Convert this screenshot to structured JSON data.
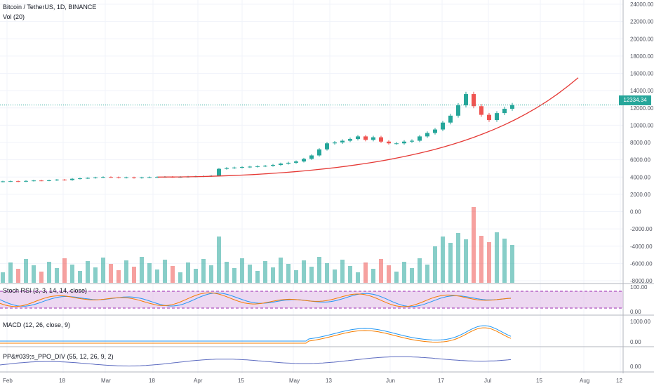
{
  "header": {
    "symbol_line": "Bitcoin / TetherUS, 1D, BINANCE",
    "volume_line": "Vol (20)"
  },
  "indicators": {
    "stoch": "Stoch RSI (3, 3, 14, 14, close)",
    "macd": "MACD (12, 26, close, 9)",
    "ppo": "PP&#039;s_PPO_DIV (55, 12, 26, 9, 2)"
  },
  "price_badge": "12334.34",
  "colors": {
    "up": "#26a69a",
    "down": "#ef5350",
    "trend": "#e53935",
    "stoch_band": "#e1bee7"
  },
  "chart_data": {
    "type": "candlestick",
    "x_ticks": [
      "Feb",
      "18",
      "Mar",
      "18",
      "Apr",
      "15",
      "May",
      "13",
      "Jun",
      "17",
      "Jul",
      "15",
      "Aug",
      "12"
    ],
    "y_ticks": [
      "24000.00",
      "22000.00",
      "20000.00",
      "18000.00",
      "16000.00",
      "14000.00",
      "12000.00",
      "10000.00",
      "8000.00",
      "6000.00",
      "4000.00",
      "2000.00",
      "0.00",
      "-2000.00",
      "-4000.00",
      "-6000.00",
      "-8000.00"
    ],
    "stoch_ticks": [
      "100.00",
      "0.00"
    ],
    "macd_ticks": [
      "1000.00",
      "0.00"
    ],
    "ppo_ticks": [
      "0.00"
    ],
    "last_price": 12334.34,
    "candles": [
      3500,
      3520,
      3480,
      3550,
      3600,
      3580,
      3620,
      3700,
      3650,
      3800,
      3850,
      3900,
      3950,
      4000,
      3980,
      3920,
      3960,
      3900,
      3950,
      3980,
      4000,
      4020,
      3990,
      4010,
      4050,
      4080,
      4100,
      4150,
      4950,
      5050,
      5100,
      5150,
      5200,
      5250,
      5300,
      5400,
      5550,
      5650,
      5800,
      6100,
      6500,
      7200,
      7900,
      8000,
      8200,
      8400,
      8700,
      8300,
      8600,
      8100,
      7900,
      7900,
      8100,
      8200,
      8700,
      9100,
      9500,
      10300,
      11100,
      12300,
      13600,
      12200,
      11200,
      10600,
      11400,
      11900,
      12334
    ],
    "trend_curve": {
      "from": 4000,
      "to": 15500
    }
  }
}
